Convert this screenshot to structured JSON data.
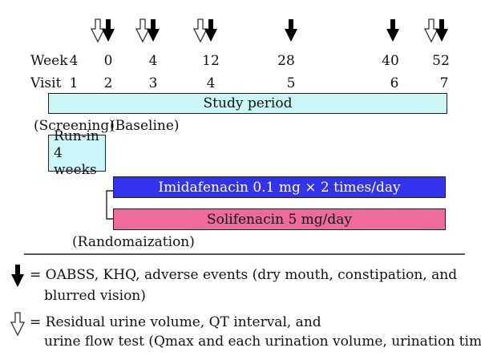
{
  "timeline": {
    "week_label": "Week",
    "visit_label": "Visit",
    "weeks": [
      "4",
      "0",
      "4",
      "12",
      "28",
      "40",
      "52"
    ],
    "visits": [
      "1",
      "2",
      "3",
      "4",
      "5",
      "6",
      "7"
    ]
  },
  "study_period_label": "Study period",
  "screening_label": "(Screening)",
  "baseline_label": "(Baseline)",
  "runin": {
    "line1": "Run-in",
    "line2": "4 weeks"
  },
  "arms": {
    "imidafenacin": "Imidafenacin 0.1 mg × 2 times/day",
    "solifenacin": "Solifenacin 5 mg/day"
  },
  "randomization_label": "(Randomaization)",
  "legend": {
    "filled_line1": "= OABSS, KHQ, adverse events (dry mouth, constipation, and",
    "filled_line2": "blurred vision)",
    "open_line1": "= Residual urine volume, QT interval, and",
    "open_line2": "urine flow test (Qmax and each urination volume, urination time)"
  },
  "colors": {
    "study_period_fill": "#ccf5f7",
    "runin_fill": "#ccf5f7",
    "imidafenacin_fill": "#3333ee",
    "solifenacin_fill": "#ee6a9a"
  }
}
